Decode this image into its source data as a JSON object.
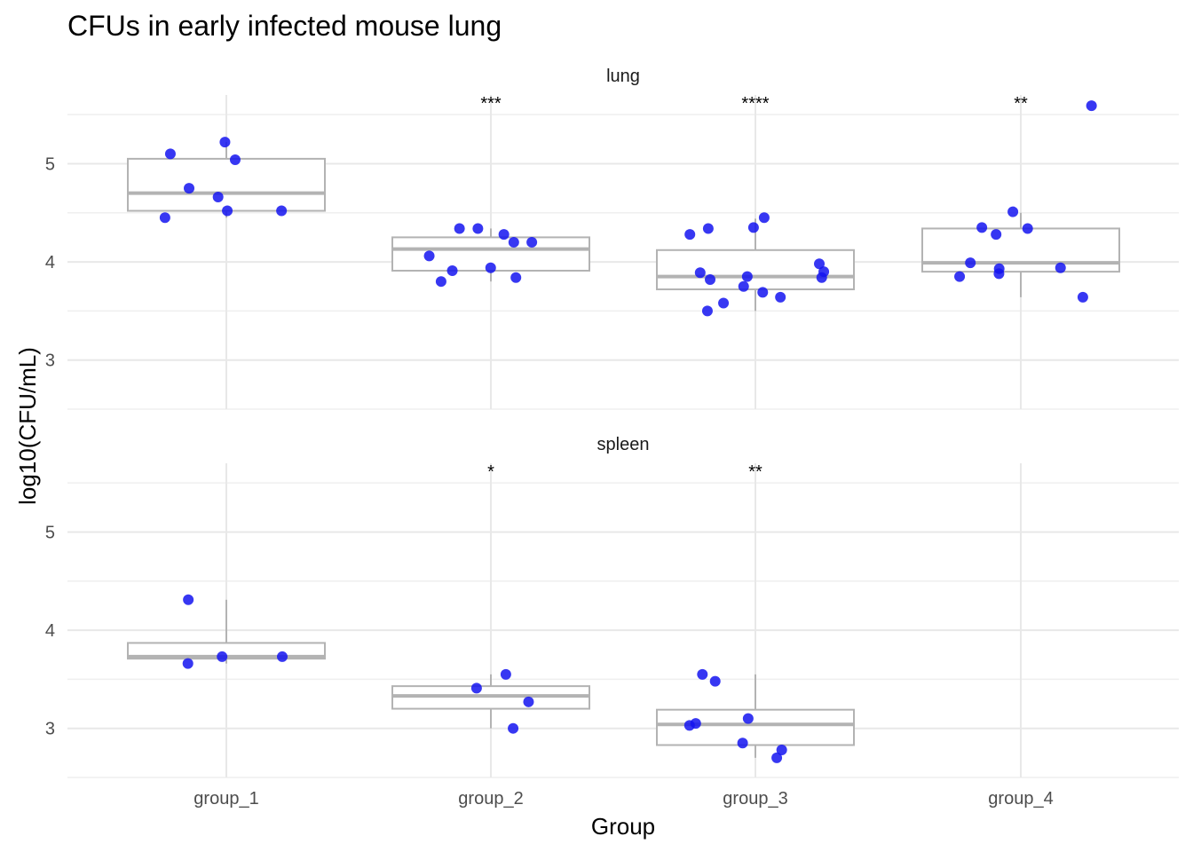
{
  "chart_data": {
    "type": "box",
    "title": "CFUs in early infected mouse lung",
    "xlabel": "Group",
    "ylabel": "log10(CFU/mL)",
    "categories": [
      "group_1",
      "group_2",
      "group_3",
      "group_4"
    ],
    "ylim": [
      2.5,
      5.7
    ],
    "yticks": [
      3,
      4,
      5
    ],
    "grid": true,
    "colors": {
      "point": "#1414f0",
      "box": "#b3b3b3",
      "grid": "#e8e8e8"
    },
    "panels": [
      {
        "label": "lung",
        "groups": [
          {
            "category": "group_1",
            "q1": 4.52,
            "median": 4.7,
            "q3": 5.05,
            "whisker_low": 4.45,
            "whisker_high": 5.22,
            "significance": "",
            "points": [
              5.22,
              5.04,
              5.1,
              4.75,
              4.66,
              4.52,
              4.45,
              4.52
            ]
          },
          {
            "category": "group_2",
            "q1": 3.91,
            "median": 4.13,
            "q3": 4.25,
            "whisker_low": 3.8,
            "whisker_high": 4.34,
            "significance": "***",
            "points": [
              4.28,
              4.34,
              4.34,
              4.2,
              4.2,
              4.06,
              3.94,
              3.91,
              3.84,
              3.8
            ]
          },
          {
            "category": "group_3",
            "q1": 3.72,
            "median": 3.85,
            "q3": 4.12,
            "whisker_low": 3.5,
            "whisker_high": 4.44,
            "significance": "****",
            "points": [
              4.45,
              4.35,
              4.34,
              4.28,
              3.98,
              3.9,
              3.89,
              3.85,
              3.84,
              3.82,
              3.75,
              3.69,
              3.64,
              3.58,
              3.5
            ]
          },
          {
            "category": "group_4",
            "q1": 3.9,
            "median": 3.99,
            "q3": 4.34,
            "whisker_low": 3.64,
            "whisker_high": 4.5,
            "significance": "**",
            "points": [
              5.59,
              4.51,
              4.35,
              4.34,
              4.28,
              3.99,
              3.94,
              3.93,
              3.88,
              3.85,
              3.64
            ]
          }
        ]
      },
      {
        "label": "spleen",
        "groups": [
          {
            "category": "group_1",
            "q1": 3.71,
            "median": 3.73,
            "q3": 3.87,
            "whisker_low": 3.66,
            "whisker_high": 4.31,
            "significance": "",
            "points": [
              4.31,
              3.73,
              3.73,
              3.66
            ]
          },
          {
            "category": "group_2",
            "q1": 3.2,
            "median": 3.33,
            "q3": 3.43,
            "whisker_low": 3.0,
            "whisker_high": 3.55,
            "significance": "*",
            "points": [
              3.55,
              3.41,
              3.27,
              3.0
            ]
          },
          {
            "category": "group_3",
            "q1": 2.83,
            "median": 3.04,
            "q3": 3.19,
            "whisker_low": 2.7,
            "whisker_high": 3.55,
            "significance": "**",
            "points": [
              3.55,
              3.48,
              3.1,
              3.05,
              3.03,
              2.85,
              2.78,
              2.7
            ]
          },
          {
            "category": "group_4",
            "significance": "",
            "points": []
          }
        ]
      }
    ]
  }
}
